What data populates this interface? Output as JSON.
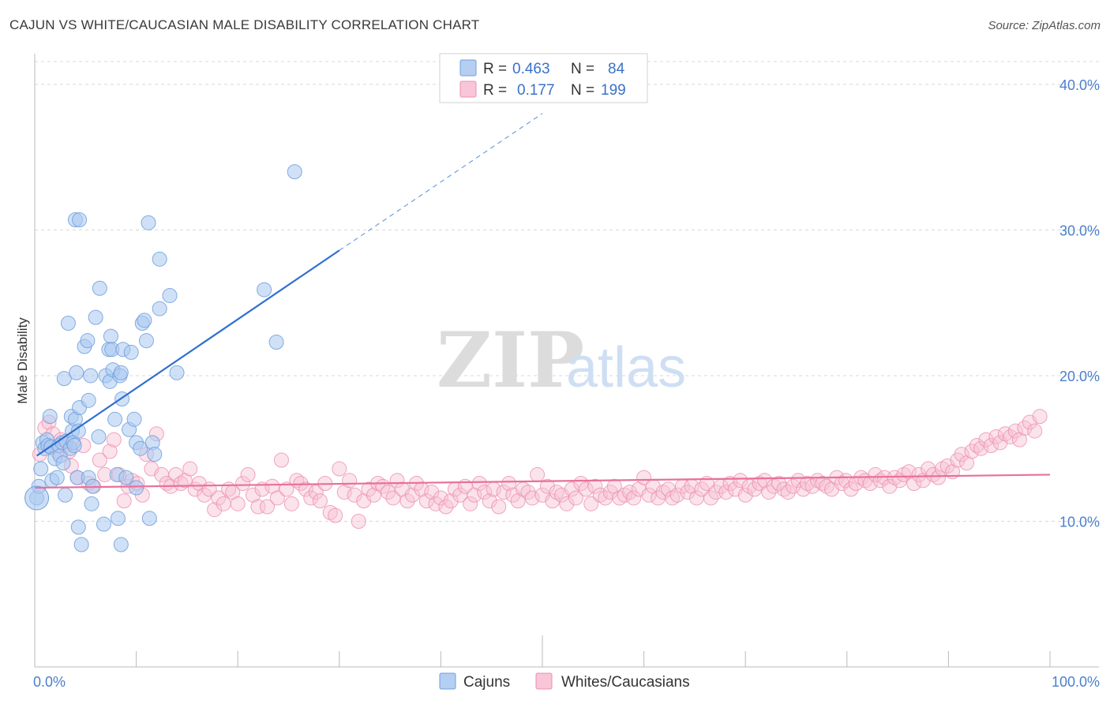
{
  "title": "CAJUN VS WHITE/CAUCASIAN MALE DISABILITY CORRELATION CHART",
  "source": "Source: ZipAtlas.com",
  "watermark": {
    "zip": "ZIP",
    "atlas": "atlas"
  },
  "colors": {
    "cajun_fill": "#a9c8f0",
    "cajun_stroke": "#6f9fdc",
    "cajun_line": "#2f6fd0",
    "white_fill": "#f6c0d3",
    "white_stroke": "#ec8fb0",
    "white_line": "#e8709a",
    "tick_label": "#4a7fcc",
    "grid": "#d8d8d8"
  },
  "legend": {
    "rows": [
      {
        "r_label": "R =",
        "r_value": "0.463",
        "n_label": "N =",
        "n_value": "84"
      },
      {
        "r_label": "R =",
        "r_value": "0.177",
        "n_label": "N =",
        "n_value": "199"
      }
    ]
  },
  "bottom_legend": {
    "cajun": "Cajuns",
    "white": "Whites/Caucasians"
  },
  "chart_data": {
    "type": "scatter",
    "title": "CAJUN VS WHITE/CAUCASIAN MALE DISABILITY CORRELATION CHART",
    "xlabel": "",
    "ylabel": "Male Disability",
    "xlim": [
      0,
      100
    ],
    "ylim": [
      0,
      42
    ],
    "x_tick_labels": [
      "0.0%",
      "100.0%"
    ],
    "y_ticks": [
      10,
      20,
      30,
      40
    ],
    "y_tick_labels": [
      "10.0%",
      "20.0%",
      "30.0%",
      "40.0%"
    ],
    "series": [
      {
        "name": "Cajuns",
        "r": 0.463,
        "n": 84,
        "trend": {
          "x0": 0.2,
          "y0": 14.5,
          "x1": 30,
          "y1": 28.6,
          "dash_to_x": 50,
          "dash_to_y": 38
        },
        "points": [
          [
            0.2,
            11.6
          ],
          [
            0.4,
            12.4
          ],
          [
            0.6,
            13.6
          ],
          [
            0.8,
            15.4
          ],
          [
            1.0,
            15.0
          ],
          [
            1.2,
            15.6
          ],
          [
            1.3,
            15.2
          ],
          [
            1.5,
            17.2
          ],
          [
            1.6,
            15.1
          ],
          [
            1.7,
            12.8
          ],
          [
            2.0,
            14.3
          ],
          [
            2.2,
            13.0
          ],
          [
            2.4,
            15.2
          ],
          [
            2.5,
            14.5
          ],
          [
            2.7,
            15.4
          ],
          [
            2.8,
            14.0
          ],
          [
            2.9,
            19.8
          ],
          [
            3.0,
            11.8
          ],
          [
            3.1,
            15.5
          ],
          [
            3.3,
            23.6
          ],
          [
            3.5,
            15.0
          ],
          [
            3.6,
            17.2
          ],
          [
            3.7,
            16.2
          ],
          [
            3.8,
            15.4
          ],
          [
            3.9,
            15.2
          ],
          [
            4.0,
            17.0
          ],
          [
            4.1,
            20.2
          ],
          [
            4.3,
            16.2
          ],
          [
            4.4,
            17.8
          ],
          [
            4.2,
            13.0
          ],
          [
            4.0,
            30.7
          ],
          [
            4.3,
            9.6
          ],
          [
            4.4,
            30.7
          ],
          [
            4.6,
            8.4
          ],
          [
            4.9,
            22.0
          ],
          [
            5.2,
            22.4
          ],
          [
            5.3,
            13.0
          ],
          [
            5.3,
            18.3
          ],
          [
            5.5,
            20.0
          ],
          [
            5.6,
            11.2
          ],
          [
            5.7,
            12.4
          ],
          [
            6.0,
            24.0
          ],
          [
            6.3,
            15.8
          ],
          [
            6.4,
            26.0
          ],
          [
            6.8,
            9.8
          ],
          [
            7.0,
            20.0
          ],
          [
            7.3,
            21.8
          ],
          [
            7.4,
            19.6
          ],
          [
            7.5,
            22.7
          ],
          [
            7.6,
            21.8
          ],
          [
            7.7,
            20.4
          ],
          [
            7.9,
            17.0
          ],
          [
            8.1,
            13.2
          ],
          [
            8.2,
            10.2
          ],
          [
            8.4,
            20.0
          ],
          [
            8.5,
            20.2
          ],
          [
            8.6,
            18.4
          ],
          [
            8.5,
            8.4
          ],
          [
            8.7,
            21.8
          ],
          [
            9.0,
            13.0
          ],
          [
            9.3,
            16.3
          ],
          [
            9.5,
            21.6
          ],
          [
            9.8,
            17.0
          ],
          [
            10.0,
            15.4
          ],
          [
            10.0,
            12.3
          ],
          [
            10.4,
            15.0
          ],
          [
            10.6,
            23.6
          ],
          [
            10.8,
            23.8
          ],
          [
            11.0,
            22.4
          ],
          [
            11.2,
            30.5
          ],
          [
            11.3,
            10.2
          ],
          [
            11.6,
            15.4
          ],
          [
            11.8,
            14.6
          ],
          [
            12.3,
            28.0
          ],
          [
            12.3,
            24.6
          ],
          [
            13.3,
            25.5
          ],
          [
            14.0,
            20.2
          ],
          [
            22.6,
            25.9
          ],
          [
            23.8,
            22.3
          ],
          [
            25.6,
            34.0
          ]
        ]
      },
      {
        "name": "Whites/Caucasians",
        "r": 0.177,
        "n": 199,
        "trend": {
          "x0": 0,
          "y0": 12.3,
          "x1": 100,
          "y1": 13.2
        },
        "points": [
          [
            0.5,
            14.6
          ],
          [
            1.0,
            16.4
          ],
          [
            1.4,
            16.8
          ],
          [
            1.8,
            16.0
          ],
          [
            2.2,
            14.8
          ],
          [
            2.6,
            15.6
          ],
          [
            3.0,
            15.2
          ],
          [
            3.4,
            14.8
          ],
          [
            3.6,
            13.8
          ],
          [
            4.2,
            13.0
          ],
          [
            4.8,
            15.2
          ],
          [
            5.3,
            12.6
          ],
          [
            5.8,
            12.4
          ],
          [
            6.4,
            14.2
          ],
          [
            6.9,
            13.2
          ],
          [
            7.4,
            14.8
          ],
          [
            7.8,
            15.6
          ],
          [
            8.3,
            13.2
          ],
          [
            8.8,
            11.4
          ],
          [
            9.2,
            12.4
          ],
          [
            9.6,
            12.8
          ],
          [
            10.1,
            12.6
          ],
          [
            10.6,
            11.8
          ],
          [
            11.0,
            14.6
          ],
          [
            11.5,
            13.6
          ],
          [
            12.0,
            16.0
          ],
          [
            12.5,
            13.2
          ],
          [
            13.0,
            12.6
          ],
          [
            13.4,
            12.4
          ],
          [
            13.9,
            13.2
          ],
          [
            14.4,
            12.6
          ],
          [
            14.8,
            12.8
          ],
          [
            15.3,
            13.6
          ],
          [
            15.8,
            12.2
          ],
          [
            16.2,
            12.6
          ],
          [
            16.7,
            11.8
          ],
          [
            17.2,
            12.2
          ],
          [
            17.7,
            10.8
          ],
          [
            18.1,
            11.6
          ],
          [
            18.6,
            11.2
          ],
          [
            19.1,
            12.2
          ],
          [
            19.5,
            12.0
          ],
          [
            20.0,
            11.2
          ],
          [
            20.5,
            12.6
          ],
          [
            21.0,
            13.2
          ],
          [
            21.5,
            11.8
          ],
          [
            22.0,
            11.0
          ],
          [
            22.4,
            12.2
          ],
          [
            22.9,
            11.0
          ],
          [
            23.4,
            12.4
          ],
          [
            23.9,
            11.6
          ],
          [
            24.3,
            14.2
          ],
          [
            24.8,
            12.2
          ],
          [
            25.3,
            11.2
          ],
          [
            25.8,
            12.8
          ],
          [
            26.2,
            12.6
          ],
          [
            26.7,
            12.2
          ],
          [
            27.2,
            11.6
          ],
          [
            27.7,
            12.0
          ],
          [
            28.1,
            11.4
          ],
          [
            28.6,
            12.6
          ],
          [
            29.1,
            10.6
          ],
          [
            29.6,
            10.4
          ],
          [
            30.0,
            13.6
          ],
          [
            30.5,
            12.0
          ],
          [
            31.0,
            12.8
          ],
          [
            31.5,
            11.8
          ],
          [
            31.9,
            10.0
          ],
          [
            32.4,
            11.4
          ],
          [
            32.9,
            12.2
          ],
          [
            33.4,
            11.8
          ],
          [
            33.8,
            12.6
          ],
          [
            34.3,
            12.4
          ],
          [
            34.8,
            12.0
          ],
          [
            35.3,
            11.6
          ],
          [
            35.7,
            12.8
          ],
          [
            36.2,
            12.2
          ],
          [
            36.7,
            11.4
          ],
          [
            37.2,
            11.8
          ],
          [
            37.6,
            12.6
          ],
          [
            38.1,
            12.2
          ],
          [
            38.6,
            11.4
          ],
          [
            39.1,
            12.0
          ],
          [
            39.5,
            11.2
          ],
          [
            40.0,
            11.6
          ],
          [
            40.5,
            11.0
          ],
          [
            41.0,
            11.4
          ],
          [
            41.4,
            12.2
          ],
          [
            41.9,
            11.8
          ],
          [
            42.4,
            12.4
          ],
          [
            42.9,
            11.2
          ],
          [
            43.3,
            11.8
          ],
          [
            43.8,
            12.6
          ],
          [
            44.3,
            12.0
          ],
          [
            44.8,
            11.4
          ],
          [
            45.2,
            12.2
          ],
          [
            45.7,
            11.0
          ],
          [
            46.2,
            12.0
          ],
          [
            46.7,
            12.6
          ],
          [
            47.1,
            11.8
          ],
          [
            47.6,
            11.4
          ],
          [
            48.1,
            12.2
          ],
          [
            48.6,
            12.0
          ],
          [
            49.0,
            11.6
          ],
          [
            49.5,
            13.2
          ],
          [
            50.0,
            11.8
          ],
          [
            50.5,
            12.4
          ],
          [
            51.0,
            11.4
          ],
          [
            51.4,
            12.0
          ],
          [
            51.9,
            11.8
          ],
          [
            52.4,
            11.2
          ],
          [
            52.9,
            12.2
          ],
          [
            53.3,
            11.6
          ],
          [
            53.8,
            12.6
          ],
          [
            54.3,
            12.2
          ],
          [
            54.8,
            11.2
          ],
          [
            55.2,
            12.4
          ],
          [
            55.7,
            11.8
          ],
          [
            56.2,
            11.6
          ],
          [
            56.7,
            12.0
          ],
          [
            57.1,
            12.4
          ],
          [
            57.6,
            11.6
          ],
          [
            58.1,
            11.8
          ],
          [
            58.6,
            12.0
          ],
          [
            59.0,
            11.6
          ],
          [
            59.5,
            12.2
          ],
          [
            60.0,
            13.0
          ],
          [
            60.5,
            11.8
          ],
          [
            60.9,
            12.4
          ],
          [
            61.4,
            11.6
          ],
          [
            61.9,
            12.0
          ],
          [
            62.4,
            12.2
          ],
          [
            62.8,
            11.6
          ],
          [
            63.3,
            11.8
          ],
          [
            63.8,
            12.4
          ],
          [
            64.3,
            12.0
          ],
          [
            64.7,
            12.4
          ],
          [
            65.2,
            11.6
          ],
          [
            65.7,
            12.2
          ],
          [
            66.2,
            12.6
          ],
          [
            66.6,
            11.6
          ],
          [
            67.1,
            12.0
          ],
          [
            67.6,
            12.4
          ],
          [
            68.1,
            12.0
          ],
          [
            68.5,
            12.6
          ],
          [
            69.0,
            12.2
          ],
          [
            69.5,
            12.8
          ],
          [
            70.0,
            11.8
          ],
          [
            70.4,
            12.4
          ],
          [
            70.9,
            12.2
          ],
          [
            71.4,
            12.6
          ],
          [
            71.9,
            12.8
          ],
          [
            72.3,
            12.0
          ],
          [
            72.8,
            12.4
          ],
          [
            73.3,
            12.6
          ],
          [
            73.8,
            12.2
          ],
          [
            74.2,
            12.0
          ],
          [
            74.7,
            12.4
          ],
          [
            75.2,
            12.8
          ],
          [
            75.7,
            12.2
          ],
          [
            76.1,
            12.6
          ],
          [
            76.6,
            12.4
          ],
          [
            77.1,
            12.8
          ],
          [
            77.6,
            12.6
          ],
          [
            78.0,
            12.4
          ],
          [
            78.5,
            12.2
          ],
          [
            79.0,
            13.0
          ],
          [
            79.5,
            12.6
          ],
          [
            79.9,
            12.8
          ],
          [
            80.4,
            12.2
          ],
          [
            80.9,
            12.6
          ],
          [
            81.4,
            13.0
          ],
          [
            81.8,
            12.8
          ],
          [
            82.3,
            12.6
          ],
          [
            82.8,
            13.2
          ],
          [
            83.3,
            12.8
          ],
          [
            83.7,
            13.0
          ],
          [
            84.2,
            12.4
          ],
          [
            84.7,
            13.0
          ],
          [
            85.2,
            12.8
          ],
          [
            85.6,
            13.2
          ],
          [
            86.1,
            13.4
          ],
          [
            86.6,
            12.6
          ],
          [
            87.1,
            13.2
          ],
          [
            87.5,
            12.8
          ],
          [
            88.0,
            13.6
          ],
          [
            88.5,
            13.2
          ],
          [
            89.0,
            13.0
          ],
          [
            89.4,
            13.6
          ],
          [
            89.9,
            13.8
          ],
          [
            90.4,
            13.4
          ],
          [
            90.9,
            14.2
          ],
          [
            91.3,
            14.6
          ],
          [
            91.8,
            14.0
          ],
          [
            92.3,
            14.8
          ],
          [
            92.8,
            15.2
          ],
          [
            93.2,
            15.0
          ],
          [
            93.7,
            15.6
          ],
          [
            94.2,
            15.2
          ],
          [
            94.7,
            15.8
          ],
          [
            95.1,
            15.4
          ],
          [
            95.6,
            16.0
          ],
          [
            96.1,
            15.8
          ],
          [
            96.6,
            16.2
          ],
          [
            97.0,
            15.6
          ],
          [
            97.5,
            16.4
          ],
          [
            98.0,
            16.8
          ],
          [
            98.5,
            16.2
          ],
          [
            99.0,
            17.2
          ]
        ]
      }
    ]
  }
}
